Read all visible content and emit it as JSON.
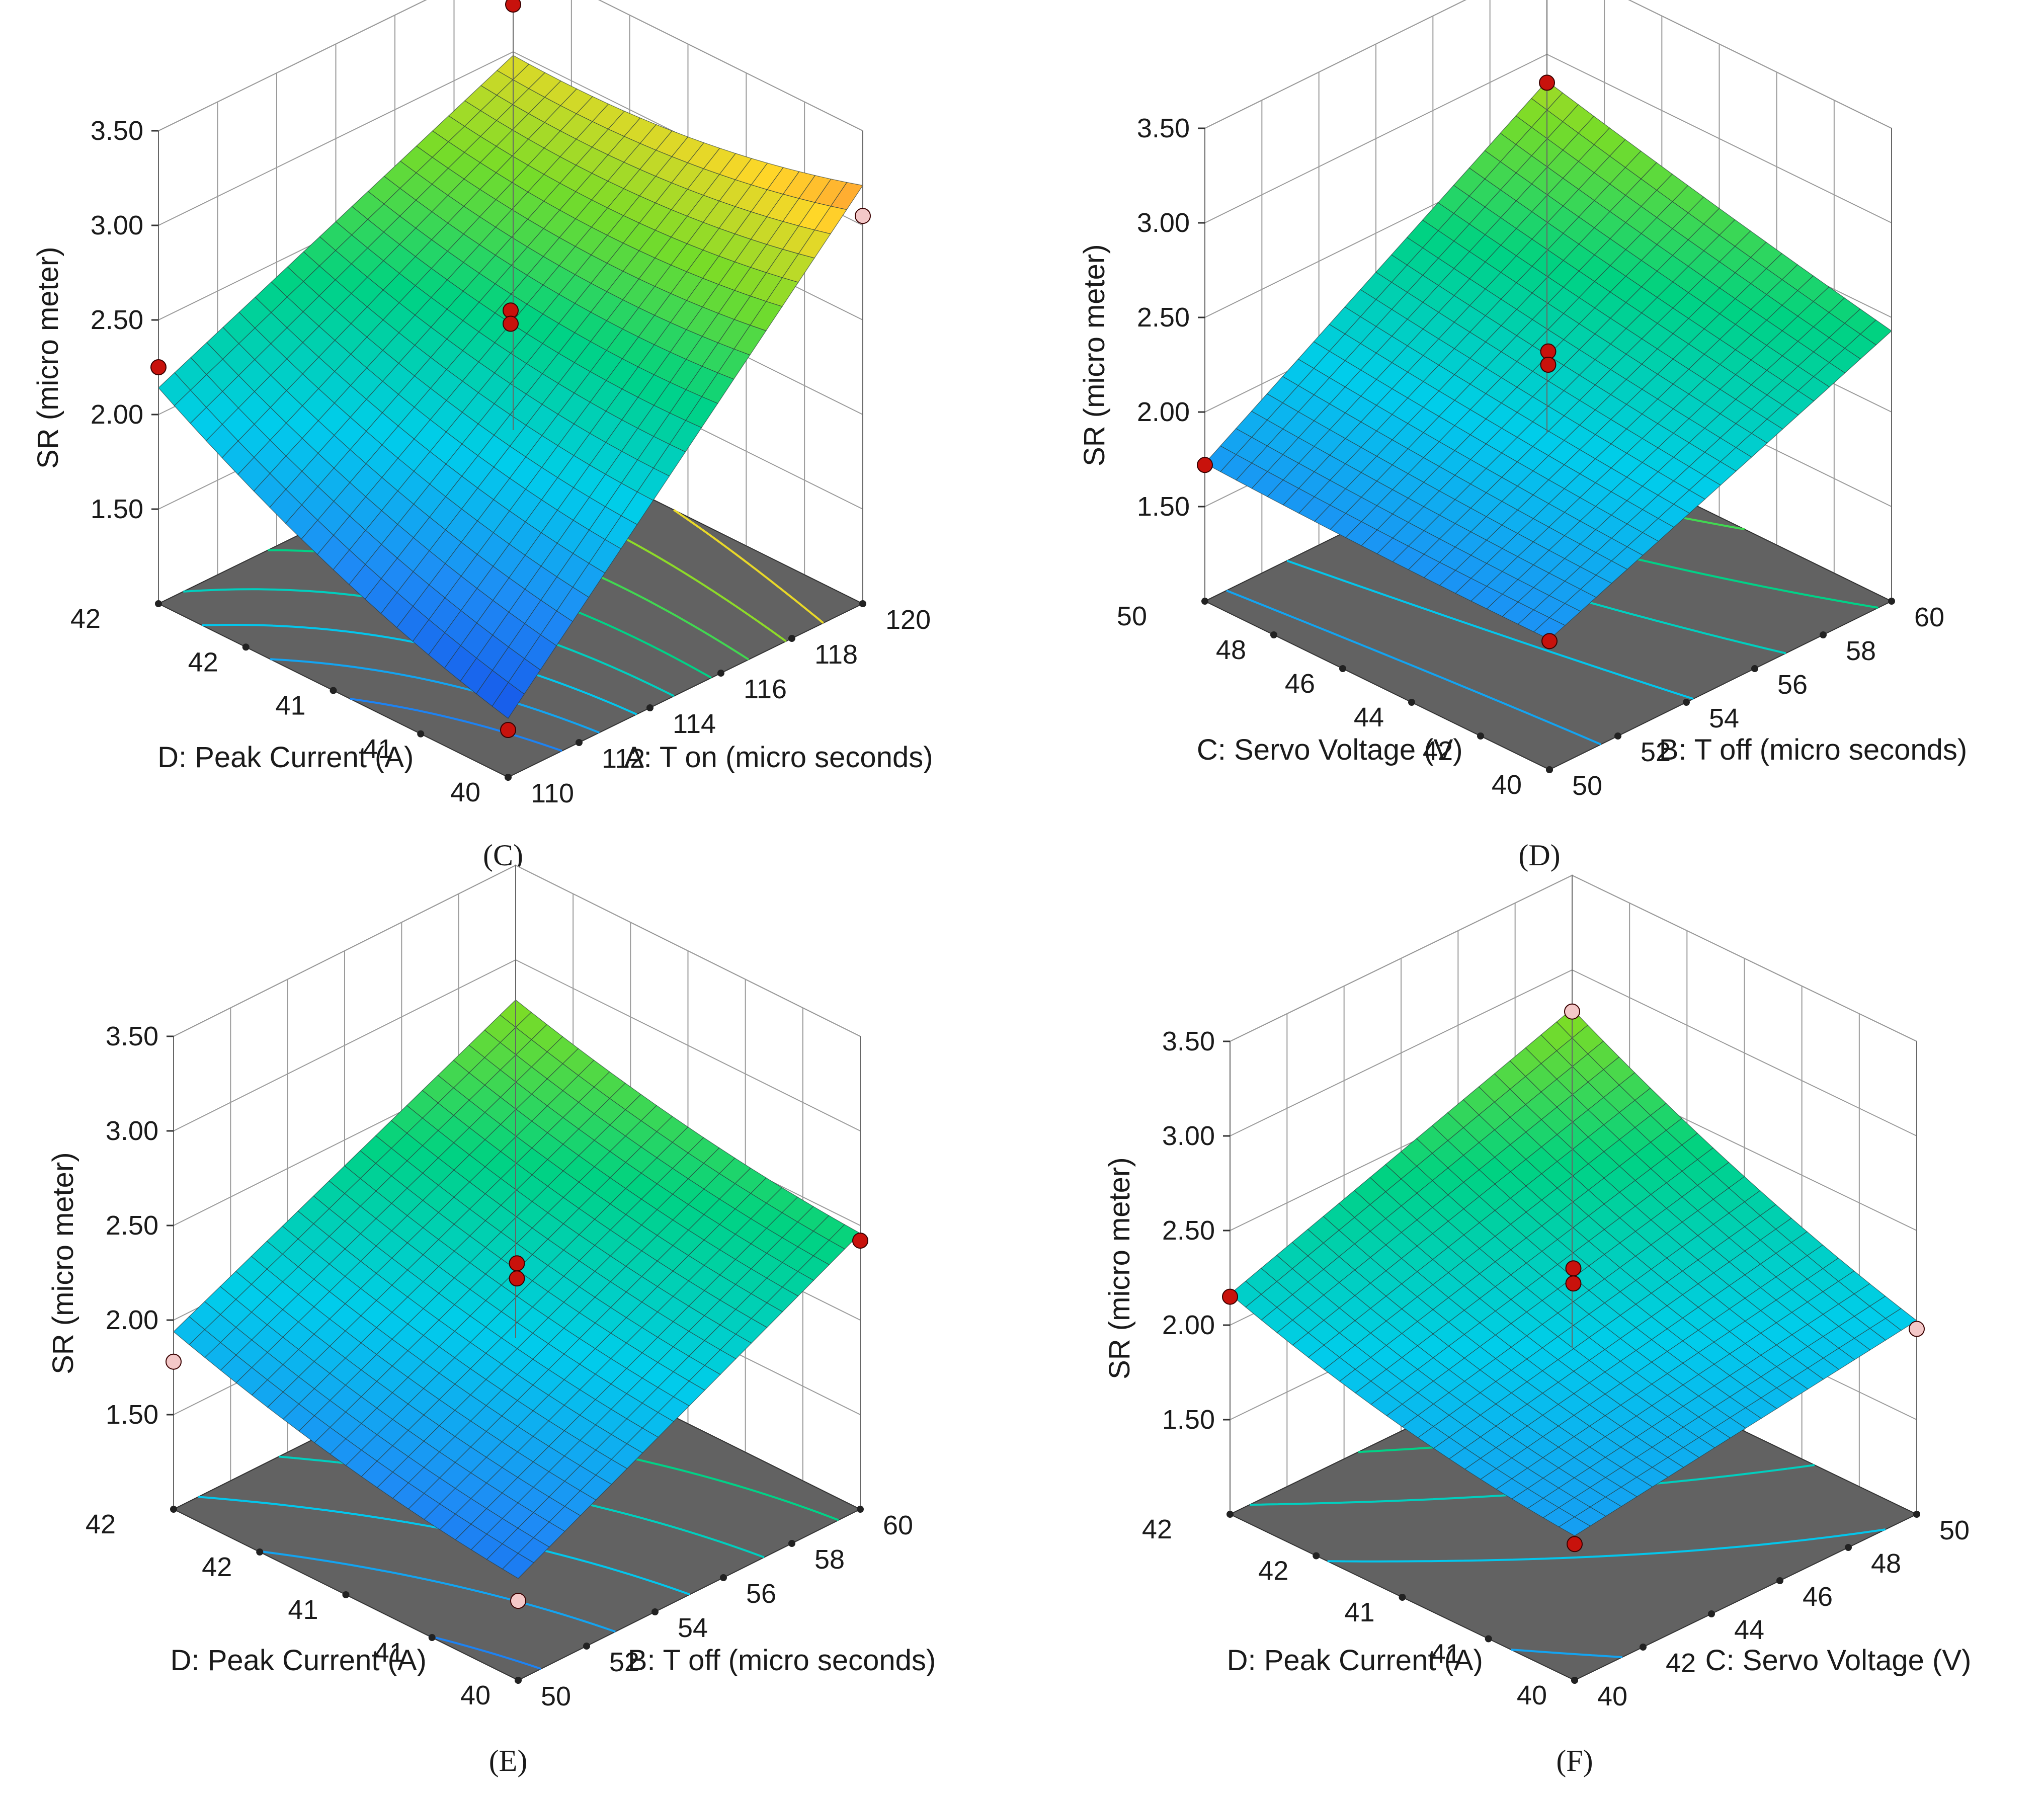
{
  "figure": {
    "colors": {
      "floor": "#626262",
      "frame": "#8c8c8c",
      "design_point": "#c8120c",
      "design_point_light": "#f4c8c8"
    }
  },
  "chart_data": [
    {
      "type": "surface3d",
      "panel_label": "(C)",
      "zlabel": "SR (micro meter)",
      "zticks": [
        "1.50",
        "2.00",
        "2.50",
        "3.00",
        "3.50"
      ],
      "zlim": [
        1.0,
        3.5
      ],
      "left_axis": {
        "label": "D: Peak Current (A)",
        "range": [
          40,
          42
        ],
        "ticks": [
          "42",
          "42",
          "41",
          "41",
          "40"
        ]
      },
      "right_axis": {
        "label": "A: T on (micro seconds)",
        "range": [
          110,
          120
        ],
        "ticks": [
          "110",
          "112",
          "114",
          "116",
          "118",
          "120"
        ]
      },
      "corners": {
        "front": 1.25,
        "left": 2.08,
        "right": 3.15,
        "back": 2.92
      },
      "curvature": 0.35,
      "design_points": [
        {
          "u": 1,
          "v": 0,
          "z": 2.25,
          "style": "dark"
        },
        {
          "u": 0,
          "v": 1,
          "z": 3.05,
          "style": "light"
        },
        {
          "u": 1,
          "v": 1,
          "z": 3.25,
          "style": "dark"
        },
        {
          "u": 0,
          "v": 0,
          "z": 1.25,
          "style": "dark"
        },
        {
          "u": 0.5,
          "v": 0.5,
          "z": 2.55,
          "style": "dark"
        },
        {
          "u": 0.5,
          "v": 0.5,
          "z": 2.48,
          "style": "dark"
        }
      ]
    },
    {
      "type": "surface3d",
      "panel_label": "(D)",
      "zlabel": "SR (micro meter)",
      "zticks": [
        "1.50",
        "2.00",
        "2.50",
        "3.00",
        "3.50"
      ],
      "zlim": [
        1.0,
        3.5
      ],
      "left_axis": {
        "label": "C: Servo Voltage (V)",
        "range": [
          40,
          50
        ],
        "ticks": [
          "50",
          "48",
          "46",
          "44",
          "42",
          "40"
        ]
      },
      "right_axis": {
        "label": "B: T off (micro seconds)",
        "range": [
          50,
          60
        ],
        "ticks": [
          "50",
          "52",
          "54",
          "56",
          "58",
          "60"
        ]
      },
      "corners": {
        "front": 1.68,
        "left": 1.72,
        "right": 2.42,
        "back": 2.85
      },
      "curvature": 0.05,
      "design_points": [
        {
          "u": 1,
          "v": 0,
          "z": 1.72,
          "style": "dark"
        },
        {
          "u": 0,
          "v": 0,
          "z": 1.68,
          "style": "dark"
        },
        {
          "u": 1,
          "v": 1,
          "z": 2.85,
          "style": "dark"
        },
        {
          "u": 0.5,
          "v": 0.5,
          "z": 2.32,
          "style": "dark"
        },
        {
          "u": 0.5,
          "v": 0.5,
          "z": 2.25,
          "style": "dark"
        }
      ]
    },
    {
      "type": "surface3d",
      "panel_label": "(E)",
      "zlabel": "SR (micro meter)",
      "zticks": [
        "1.50",
        "2.00",
        "2.50",
        "3.00",
        "3.50"
      ],
      "zlim": [
        1.0,
        3.5
      ],
      "left_axis": {
        "label": "D: Peak Current (A)",
        "range": [
          40,
          42
        ],
        "ticks": [
          "42",
          "42",
          "41",
          "41",
          "40"
        ]
      },
      "right_axis": {
        "label": "B: T off (micro seconds)",
        "range": [
          50,
          60
        ],
        "ticks": [
          "50",
          "52",
          "54",
          "56",
          "58",
          "60"
        ]
      },
      "corners": {
        "front": 1.5,
        "left": 1.9,
        "right": 2.42,
        "back": 2.75
      },
      "curvature": 0.22,
      "design_points": [
        {
          "u": 1,
          "v": 0,
          "z": 1.78,
          "style": "light"
        },
        {
          "u": 0,
          "v": 0,
          "z": 1.42,
          "style": "light"
        },
        {
          "u": 0,
          "v": 1,
          "z": 2.42,
          "style": "dark"
        },
        {
          "u": 0.5,
          "v": 0.5,
          "z": 2.3,
          "style": "dark"
        },
        {
          "u": 0.5,
          "v": 0.5,
          "z": 2.22,
          "style": "dark"
        }
      ]
    },
    {
      "type": "surface3d",
      "panel_label": "(F)",
      "zlabel": "SR (micro meter)",
      "zticks": [
        "1.50",
        "2.00",
        "2.50",
        "3.00",
        "3.50"
      ],
      "zlim": [
        1.0,
        3.5
      ],
      "left_axis": {
        "label": "D: Peak Current (A)",
        "range": [
          40,
          42
        ],
        "ticks": [
          "42",
          "42",
          "41",
          "41",
          "40"
        ]
      },
      "right_axis": {
        "label": "C: Servo Voltage (V)",
        "range": [
          40,
          50
        ],
        "ticks": [
          "40",
          "42",
          "44",
          "46",
          "48",
          "50"
        ]
      },
      "corners": {
        "front": 1.72,
        "left": 2.12,
        "right": 1.98,
        "back": 2.75
      },
      "curvature": 0.25,
      "design_points": [
        {
          "u": 1,
          "v": 0,
          "z": 2.15,
          "style": "dark"
        },
        {
          "u": 0,
          "v": 1,
          "z": 1.98,
          "style": "light"
        },
        {
          "u": 1,
          "v": 1,
          "z": 2.78,
          "style": "light"
        },
        {
          "u": 0,
          "v": 0,
          "z": 1.72,
          "style": "dark"
        },
        {
          "u": 0.5,
          "v": 0.5,
          "z": 2.3,
          "style": "dark"
        },
        {
          "u": 0.5,
          "v": 0.5,
          "z": 2.22,
          "style": "dark"
        }
      ]
    }
  ]
}
